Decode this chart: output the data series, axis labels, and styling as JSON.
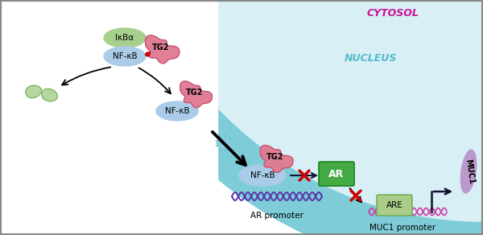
{
  "bg_color": "#ffffff",
  "cytosol_label": "CYTOSOL",
  "cytosol_color": "#cc1199",
  "nucleus_label": "NUCLEUS",
  "nucleus_color": "#55bbcc",
  "nucleus_bg": "#d8eff5",
  "nucleus_border_outer": "#7eccd8",
  "nucleus_border_inner": "#a8dde8",
  "ikba_label": "IκBα",
  "ikba_color": "#a8d08d",
  "ikba_edge": "#7aaa60",
  "nfkb_label": "NF-κB",
  "nfkb_color": "#aacce8",
  "nfkb_edge": "#6699cc",
  "tg2_label": "TG2",
  "tg2_color": "#e07890",
  "tg2_edge": "#c05070",
  "ar_label": "AR",
  "ar_color": "#44aa44",
  "ar_edge": "#228822",
  "are_label": "ARE",
  "are_color": "#aacc88",
  "are_edge": "#66aa44",
  "muc1_label": "MUC1",
  "muc1_color": "#bb99cc",
  "muc1_edge": "#9966bb",
  "ar_promoter_label": "AR promoter",
  "muc1_promoter_label": "MUC1 promoter",
  "dna_color_purple": "#5533aa",
  "dna_color_pink": "#cc44aa",
  "inhibit_color": "#cc0000",
  "arrow_color": "#111133",
  "border_color": "#aaaaaa"
}
